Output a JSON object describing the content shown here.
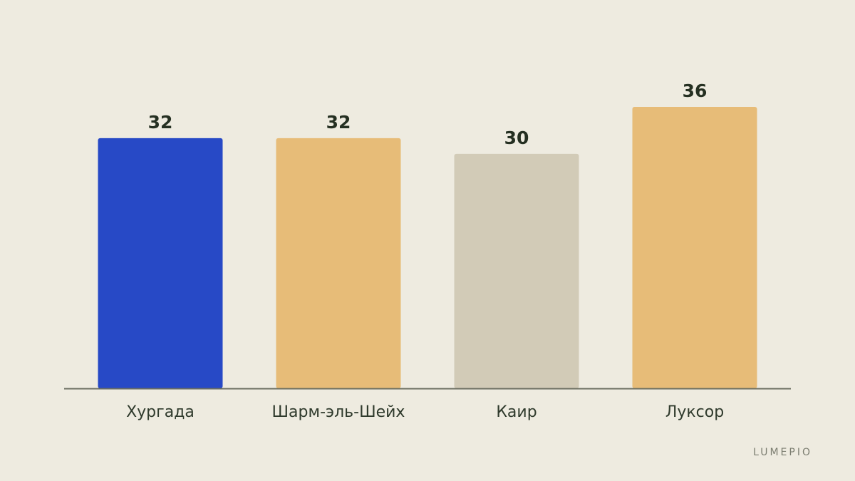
{
  "chart_data": {
    "type": "bar",
    "categories": [
      "Хургада",
      "Шарм-эль-Шейх",
      "Каир",
      "Луксор"
    ],
    "values": [
      32,
      32,
      30,
      36
    ],
    "bar_colors": [
      "#2749c6",
      "#e7bc78",
      "#d2cbb7",
      "#e7bc78"
    ],
    "ylim": [
      0,
      36
    ],
    "grid": false,
    "title": "",
    "xlabel": "",
    "ylabel": ""
  },
  "brand": "LUMEPIO",
  "colors": {
    "background": "#eeebe0",
    "axis": "#6b6e60",
    "text": "#253022"
  }
}
